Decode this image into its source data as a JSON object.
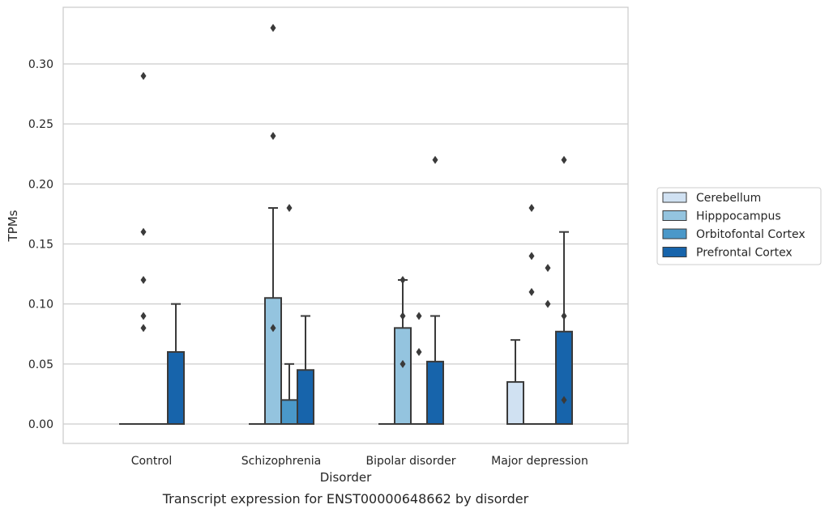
{
  "chart_data": {
    "type": "bar",
    "title": "Transcript expression for ENST00000648662 by disorder",
    "xlabel": "Disorder",
    "ylabel": "TPMs",
    "ylim": [
      -0.016,
      0.346
    ],
    "yticks": [
      "0.00",
      "0.05",
      "0.10",
      "0.15",
      "0.20",
      "0.25",
      "0.30"
    ],
    "grid": true,
    "legend_position": "right",
    "categories": [
      "Control",
      "Schizophrenia",
      "Bipolar disorder",
      "Major depression"
    ],
    "series": [
      {
        "name": "Cerebellum",
        "color": "#d0e1f2",
        "values": [
          0.0,
          0.0,
          0.0,
          0.035
        ],
        "err_top": [
          null,
          null,
          null,
          0.07
        ],
        "outliers": [
          [],
          [],
          [],
          []
        ]
      },
      {
        "name": "Hipppocampus",
        "color": "#94c4df",
        "values": [
          0.0,
          0.105,
          0.08,
          0.0
        ],
        "err_top": [
          null,
          0.18,
          0.12,
          null
        ],
        "outliers": [
          [
            0.08,
            0.09,
            0.12,
            0.16,
            0.29
          ],
          [
            0.08,
            0.24,
            0.33
          ],
          [
            0.05,
            0.09,
            0.12
          ],
          [
            0.11,
            0.14,
            0.18
          ]
        ]
      },
      {
        "name": "Orbitofontal Cortex",
        "color": "#4a98c9",
        "values": [
          0.0,
          0.02,
          0.0,
          0.0
        ],
        "err_top": [
          null,
          0.05,
          null,
          null
        ],
        "outliers": [
          [],
          [
            0.18
          ],
          [
            0.06,
            0.09
          ],
          [
            0.1,
            0.13
          ]
        ]
      },
      {
        "name": "Prefrontal Cortex",
        "color": "#1764ab",
        "values": [
          0.06,
          0.045,
          0.052,
          0.077
        ],
        "err_top": [
          0.1,
          0.09,
          0.09,
          0.16
        ],
        "outliers": [
          [],
          [],
          [
            0.22
          ],
          [
            0.02,
            0.09,
            0.22
          ]
        ]
      }
    ]
  }
}
